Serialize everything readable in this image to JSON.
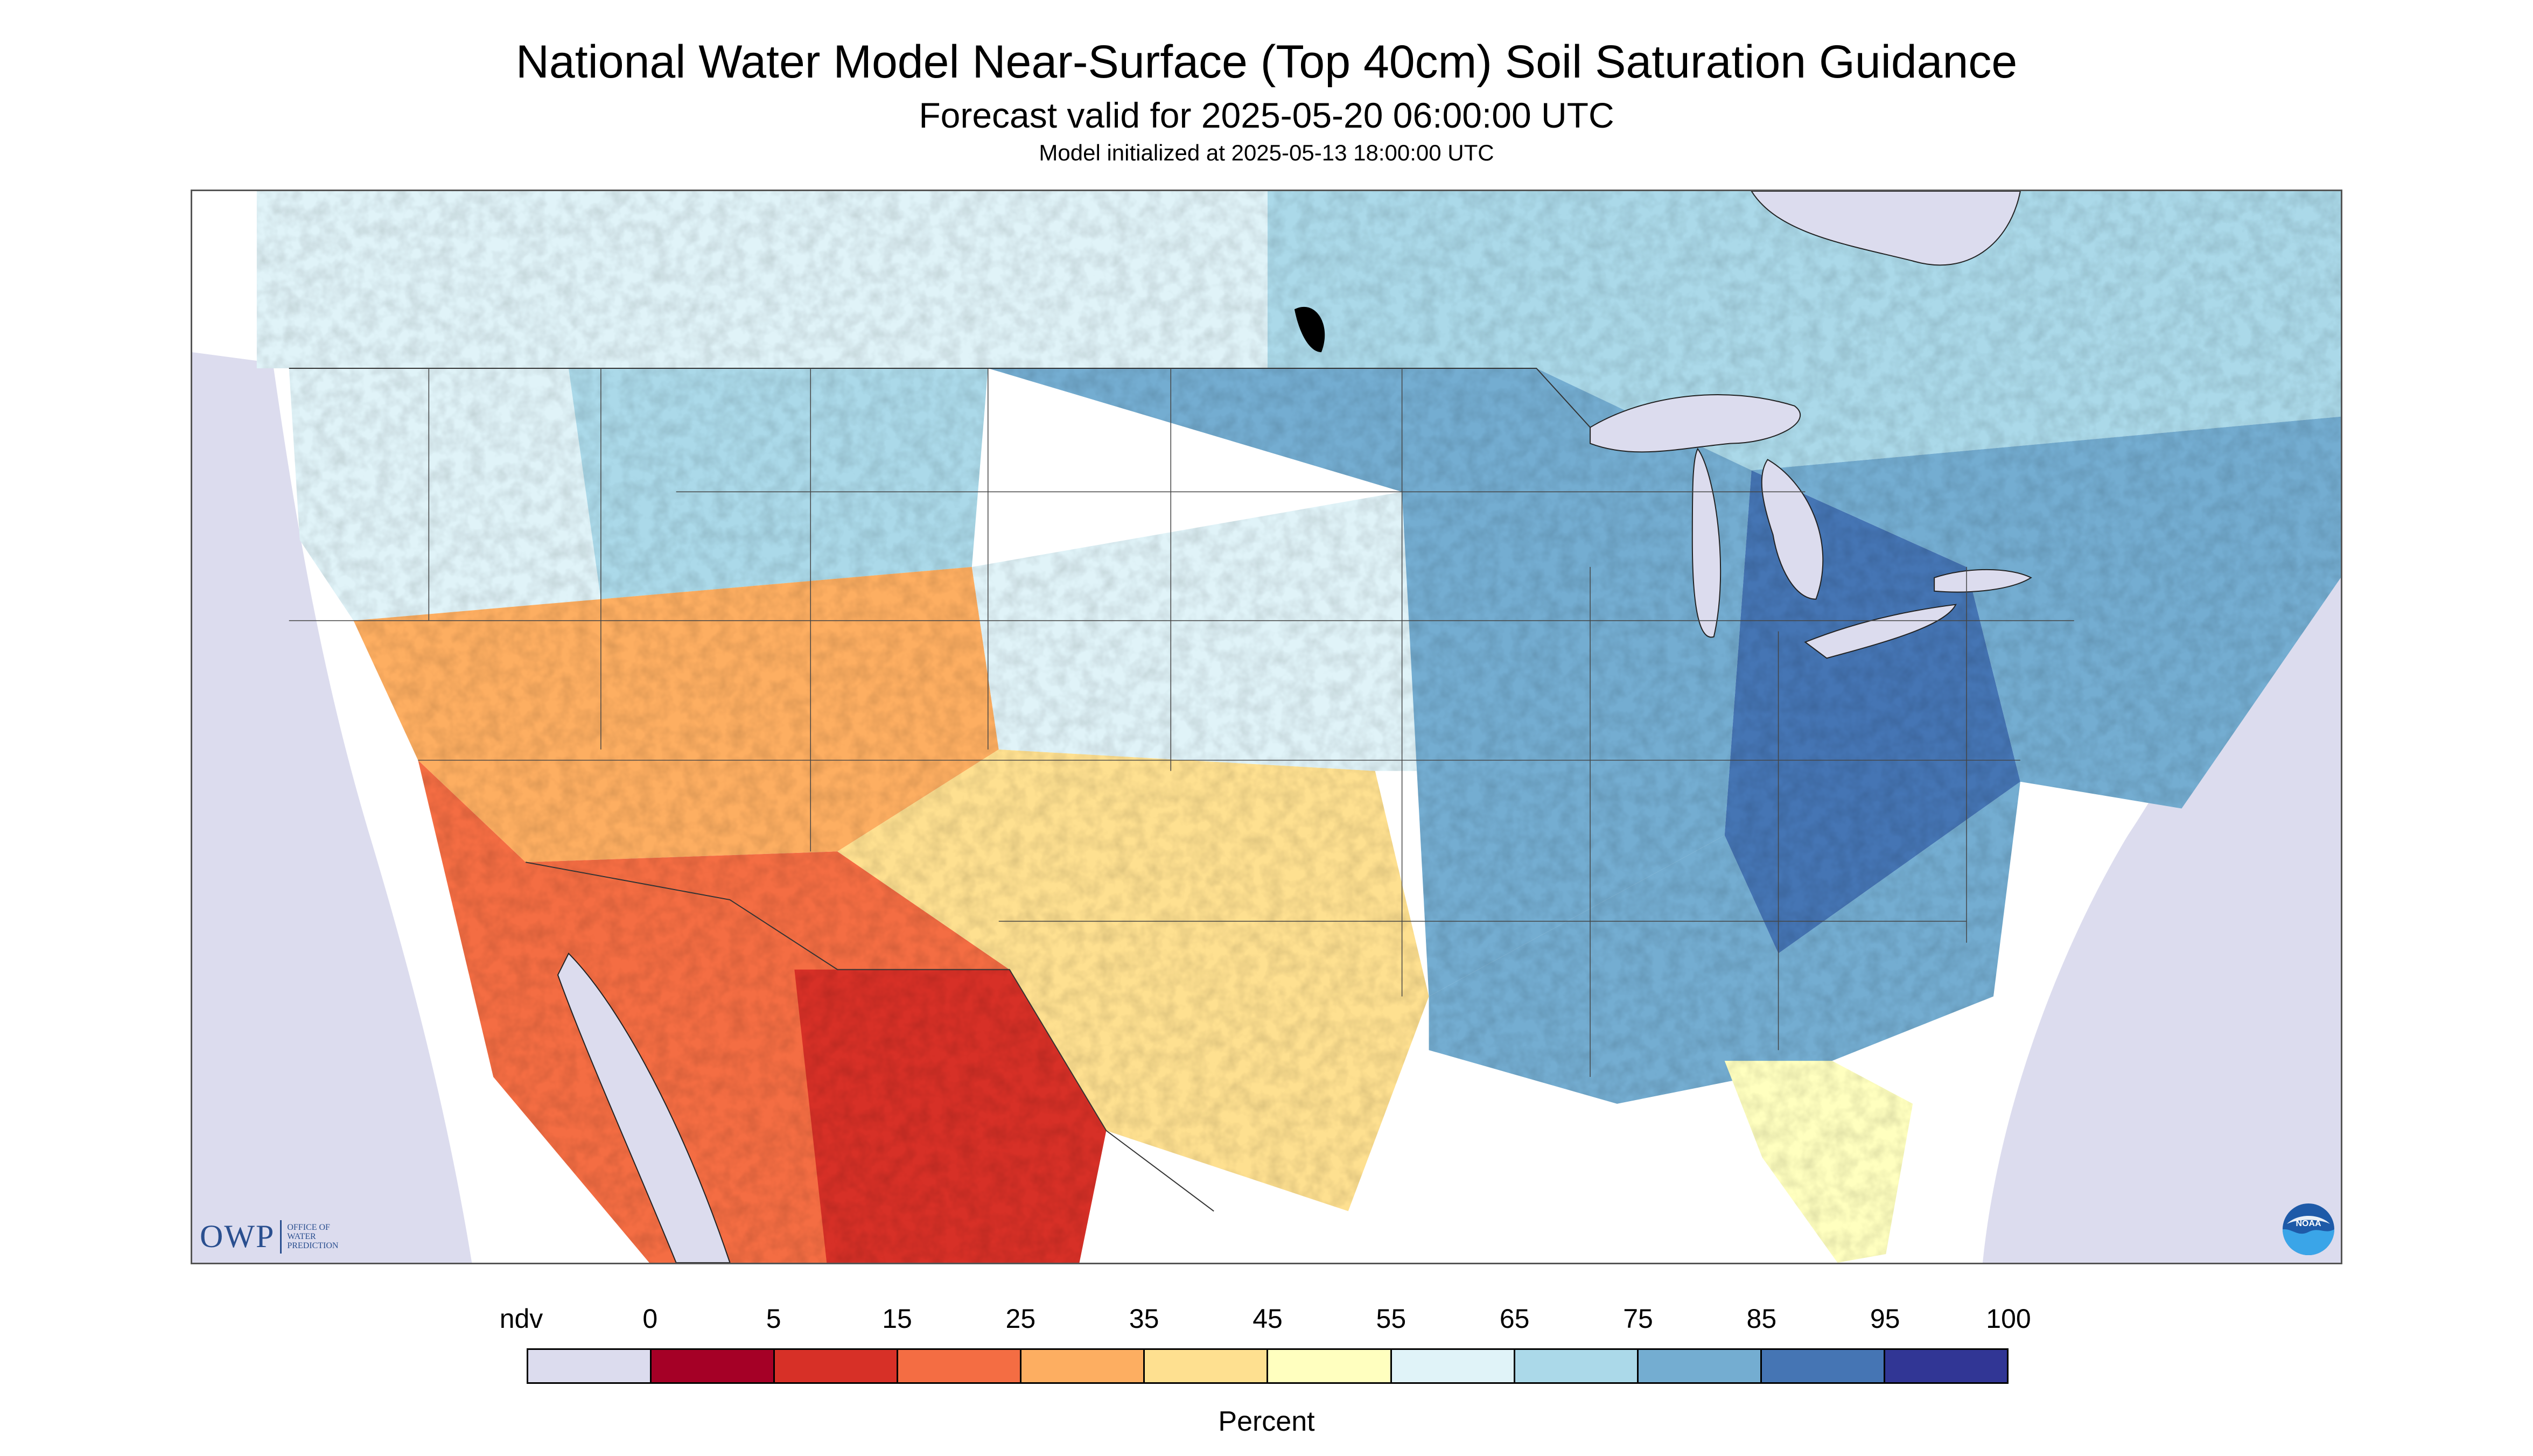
{
  "title": "National Water Model Near-Surface (Top 40cm) Soil Saturation Guidance",
  "subtitle": "Forecast valid for 2025-05-20 06:00:00 UTC",
  "init_line": "Model initialized at 2025-05-13 18:00:00 UTC",
  "owp_logo": {
    "big": "OWP",
    "line1": "Office of",
    "line2": "Water",
    "line3": "Prediction"
  },
  "noaa_logo_text": "NOAA",
  "legend": {
    "unit": "Percent",
    "tick_labels": [
      "ndv",
      "0",
      "5",
      "15",
      "25",
      "35",
      "45",
      "55",
      "65",
      "75",
      "85",
      "95",
      "100"
    ],
    "colors": [
      "#dcdcee",
      "#a50026",
      "#d73027",
      "#f46d43",
      "#fdae61",
      "#fee090",
      "#ffffbf",
      "#e0f3f8",
      "#abd9e9",
      "#74add1",
      "#4575b4",
      "#313695"
    ]
  },
  "map": {
    "ndv_color": "#dcdcee",
    "water_color": "#dcdcee",
    "region_levels": {
      "pacific_nw": 62,
      "northern_rockies": 70,
      "great_basin": 32,
      "southwest": 22,
      "sonora_chihuahua": 10,
      "southern_plains": 40,
      "high_plains": 55,
      "corn_belt": 82,
      "ohio_valley": 88,
      "southeast": 78,
      "florida": 48,
      "northeast": 76,
      "ontario_quebec": 74,
      "prairies": 58
    }
  }
}
